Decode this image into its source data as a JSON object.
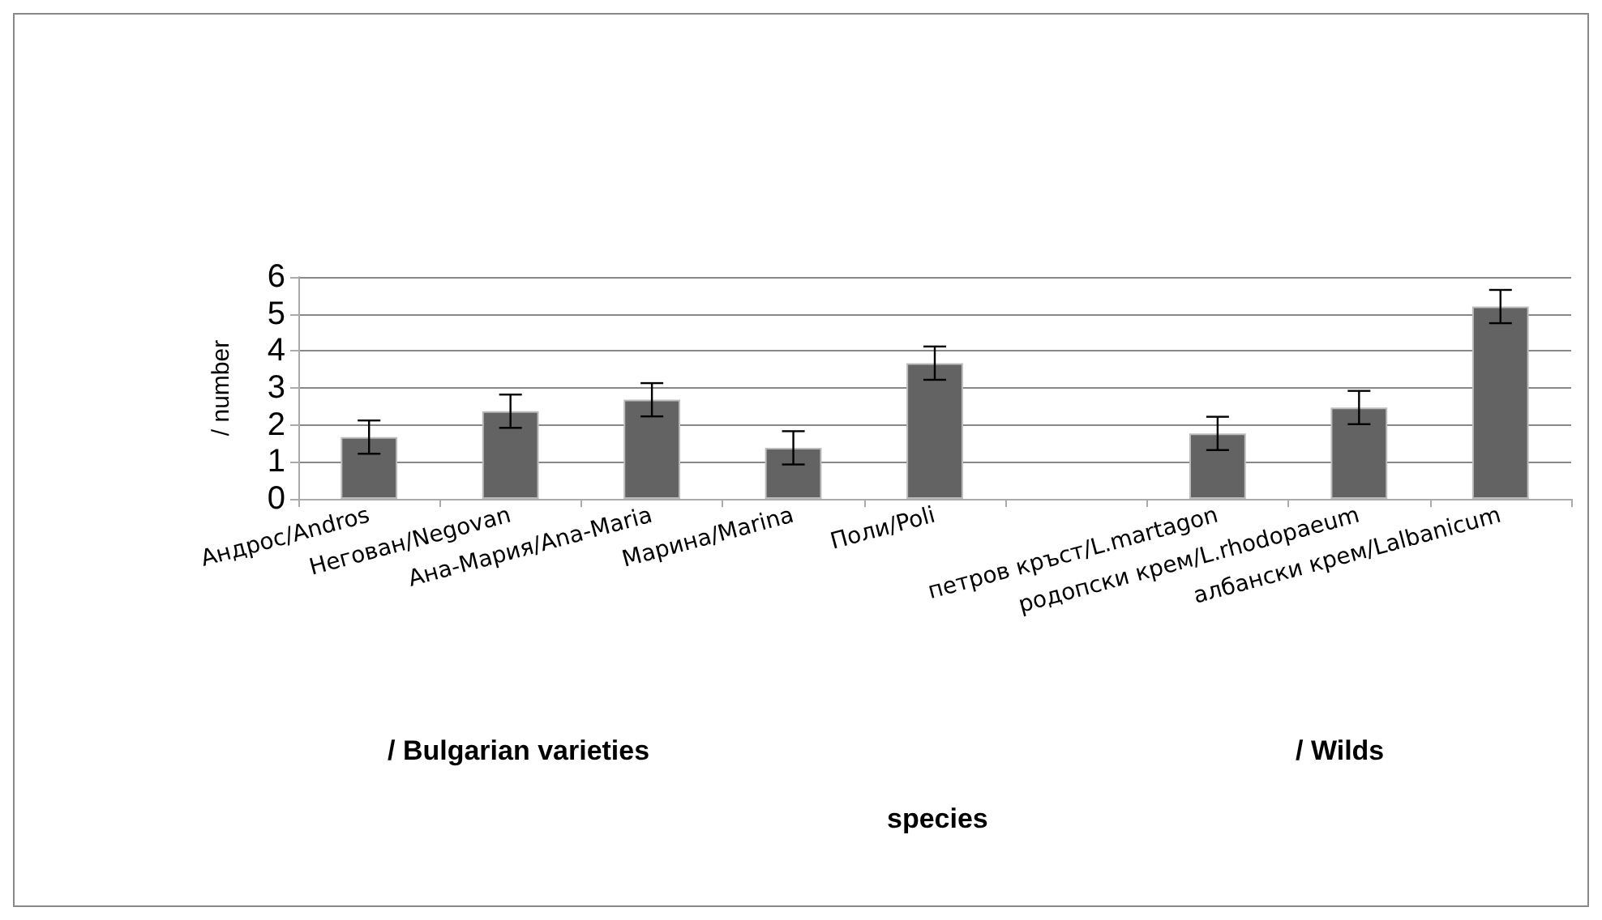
{
  "chart_data": {
    "type": "bar",
    "ylabel": "/ number",
    "categories": [
      "Андрос/Andros",
      "Негован/Negovan",
      "Ана-Мария/Ana-Maria",
      "Марина/Marina",
      "Поли/Poli",
      null,
      "петров кръст/L.martagon",
      "родопски крем/L.rhodopaeum",
      "албански крем/Lalbanicum"
    ],
    "values": [
      1.67,
      2.37,
      2.68,
      1.38,
      3.67,
      null,
      1.77,
      2.47,
      5.2
    ],
    "errors": [
      0.45,
      0.45,
      0.45,
      0.45,
      0.45,
      null,
      0.45,
      0.45,
      0.45
    ],
    "color": "#636363",
    "ylim": [
      0,
      6
    ],
    "yticks": [
      0,
      1,
      2,
      3,
      4,
      5,
      6
    ],
    "grid": "y",
    "annotations": [
      "/ Bulgarian varieties",
      "/ Wilds",
      "species"
    ]
  }
}
